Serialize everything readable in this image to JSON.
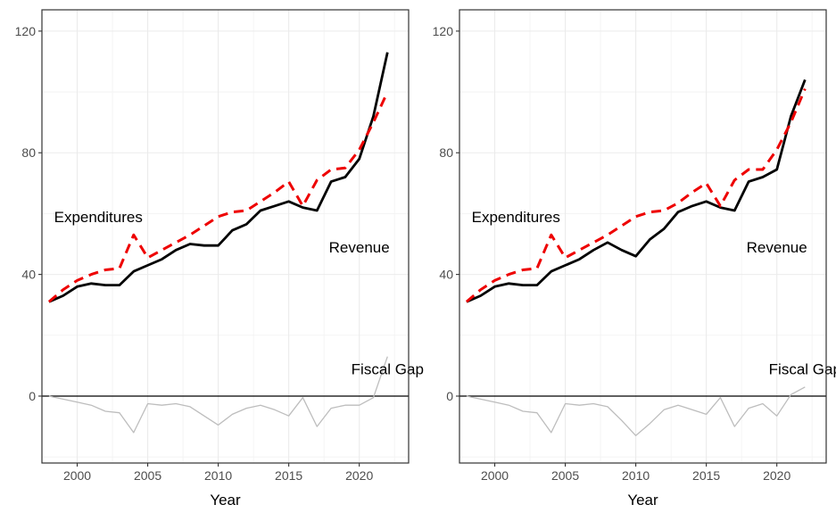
{
  "chart_data": [
    {
      "type": "line",
      "xlabel": "Year",
      "ylabel": "",
      "xlim": [
        1997.5,
        2023.5
      ],
      "ylim": [
        -22,
        127
      ],
      "xticks": [
        "2000",
        "2005",
        "2010",
        "2015",
        "2020"
      ],
      "yticks": [
        "0",
        "40",
        "80",
        "120"
      ],
      "grid": true,
      "legend": "none",
      "x": [
        1998,
        1999,
        2000,
        2001,
        2002,
        2003,
        2004,
        2005,
        2006,
        2007,
        2008,
        2009,
        2010,
        2011,
        2012,
        2013,
        2014,
        2015,
        2016,
        2017,
        2018,
        2019,
        2020,
        2021,
        2022
      ],
      "series": [
        {
          "name": "Revenue",
          "color": "#000000",
          "style": "solid",
          "values": [
            31,
            33,
            36,
            37,
            36.5,
            36.5,
            41,
            43,
            45,
            48,
            50,
            49.5,
            49.5,
            54.5,
            56.5,
            61,
            62.5,
            64,
            62,
            61,
            70.5,
            72,
            78,
            92,
            113
          ]
        },
        {
          "name": "Expenditures",
          "color": "#ee0000",
          "style": "dashed",
          "values": [
            31,
            35,
            38,
            40,
            41.5,
            42,
            53,
            45.5,
            48,
            50.5,
            53,
            56,
            59,
            60.5,
            61,
            64,
            67,
            70.5,
            62.5,
            71,
            74.5,
            75,
            81,
            90,
            100
          ]
        },
        {
          "name": "Fiscal Gap",
          "color": "#bdbdbd",
          "style": "thin",
          "values": [
            0,
            -1,
            -2,
            -3,
            -5,
            -5.5,
            -12,
            -2.5,
            -3,
            -2.5,
            -3.5,
            -6.5,
            -9.5,
            -6,
            -4,
            -3,
            -4.5,
            -6.5,
            -0.5,
            -10,
            -4,
            -3,
            -3,
            -0.5,
            13
          ]
        }
      ],
      "annotations": [
        {
          "text": "Expenditures",
          "x": 2001.5,
          "y": 59
        },
        {
          "text": "Revenue",
          "x": 2020,
          "y": 49
        },
        {
          "text": "Fiscal Gap",
          "x": 2022,
          "y": 9
        }
      ]
    },
    {
      "type": "line",
      "xlabel": "Year",
      "ylabel": "",
      "xlim": [
        1997.5,
        2023.5
      ],
      "ylim": [
        -22,
        127
      ],
      "xticks": [
        "2000",
        "2005",
        "2010",
        "2015",
        "2020"
      ],
      "yticks": [
        "0",
        "40",
        "80",
        "120"
      ],
      "grid": true,
      "legend": "none",
      "x": [
        1998,
        1999,
        2000,
        2001,
        2002,
        2003,
        2004,
        2005,
        2006,
        2007,
        2008,
        2009,
        2010,
        2011,
        2012,
        2013,
        2014,
        2015,
        2016,
        2017,
        2018,
        2019,
        2020,
        2021,
        2022
      ],
      "series": [
        {
          "name": "Revenue",
          "color": "#000000",
          "style": "solid",
          "values": [
            31,
            33,
            36,
            37,
            36.5,
            36.5,
            41,
            43,
            45,
            48,
            50.5,
            48,
            46,
            51.5,
            55,
            60.5,
            62.5,
            64,
            62,
            61,
            70.5,
            72,
            74.5,
            92,
            104
          ]
        },
        {
          "name": "Expenditures",
          "color": "#ee0000",
          "style": "dashed",
          "values": [
            31,
            35,
            38,
            40,
            41.5,
            42,
            53,
            45.5,
            48,
            50.5,
            53,
            56,
            59,
            60.5,
            61,
            63.5,
            67,
            70,
            62.5,
            71,
            74.5,
            74.5,
            81,
            90,
            101
          ]
        },
        {
          "name": "Fiscal Gap",
          "color": "#bdbdbd",
          "style": "thin",
          "values": [
            0,
            -1,
            -2,
            -3,
            -5,
            -5.5,
            -12,
            -2.5,
            -3,
            -2.5,
            -3.5,
            -8,
            -13,
            -9,
            -4.5,
            -3,
            -4.5,
            -6,
            -0.5,
            -10,
            -4,
            -2.5,
            -6.5,
            0.5,
            3
          ]
        }
      ],
      "annotations": [
        {
          "text": "Expenditures",
          "x": 2001.5,
          "y": 59
        },
        {
          "text": "Revenue",
          "x": 2020,
          "y": 49
        },
        {
          "text": "Fiscal Gap",
          "x": 2022,
          "y": 9
        }
      ]
    }
  ]
}
